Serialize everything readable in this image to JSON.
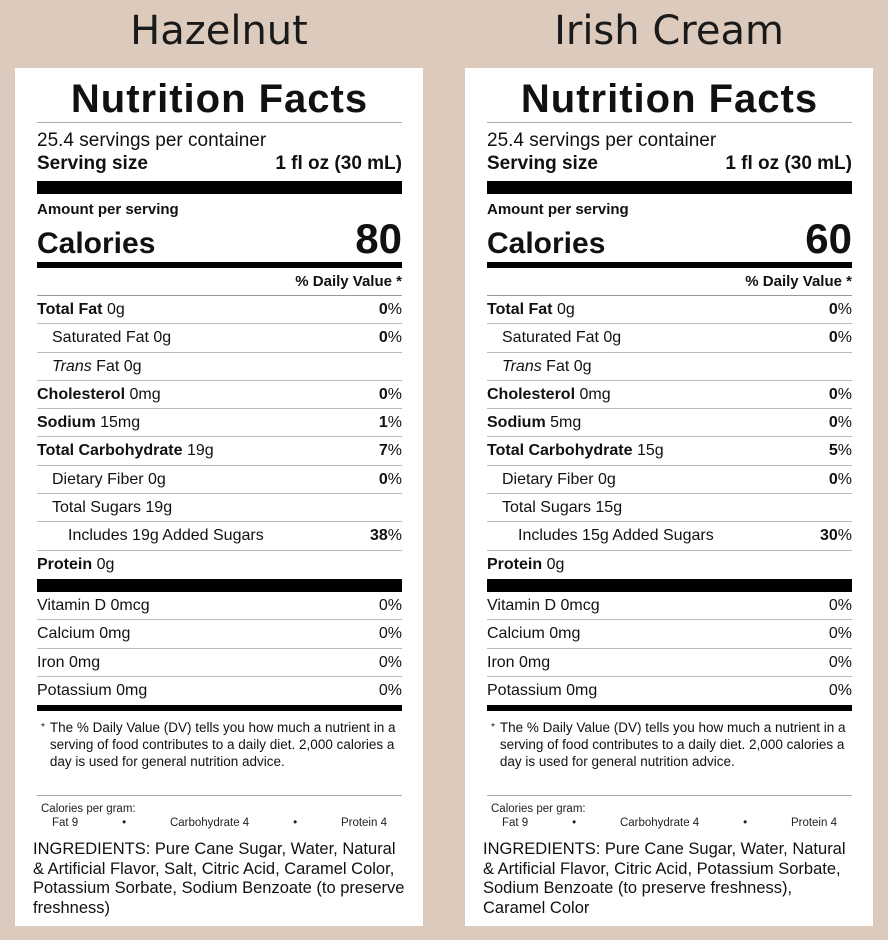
{
  "labels": [
    {
      "flavor": "Hazelnut",
      "title": "Nutrition Facts",
      "servings": "25.4 servings per container",
      "serving_size_label": "Serving size",
      "serving_size_value": "1 fl oz (30 mL)",
      "amount_per_serving": "Amount per serving",
      "calories_label": "Calories",
      "calories_value": "80",
      "dv_header": "% Daily Value *",
      "nutrients": [
        {
          "name": "Total Fat",
          "amount": "0g",
          "pct": "0",
          "indent": 0,
          "bold": true
        },
        {
          "name": "Saturated Fat",
          "amount": "0g",
          "pct": "0",
          "indent": 1,
          "bold": false
        },
        {
          "name": "Trans",
          "name_rest": "Fat",
          "amount": "0g",
          "pct": "",
          "indent": 1,
          "bold": false,
          "italic": true
        },
        {
          "name": "Cholesterol",
          "amount": "0mg",
          "pct": "0",
          "indent": 0,
          "bold": true
        },
        {
          "name": "Sodium",
          "amount": "15mg",
          "pct": "1",
          "indent": 0,
          "bold": true
        },
        {
          "name": "Total Carbohydrate",
          "amount": "19g",
          "pct": "7",
          "indent": 0,
          "bold": true
        },
        {
          "name": "Dietary Fiber",
          "amount": "0g",
          "pct": "0",
          "indent": 1,
          "bold": false
        },
        {
          "name": "Total Sugars",
          "amount": "19g",
          "pct": "",
          "indent": 1,
          "bold": false
        },
        {
          "name": "Includes 19g Added Sugars",
          "amount": "",
          "pct": "38",
          "indent": 2,
          "bold": false
        },
        {
          "name": "Protein",
          "amount": "0g",
          "pct": "",
          "indent": 0,
          "bold": true
        }
      ],
      "vitamins": [
        {
          "name": "Vitamin D 0mcg",
          "pct": "0%"
        },
        {
          "name": "Calcium 0mg",
          "pct": "0%"
        },
        {
          "name": "Iron 0mg",
          "pct": "0%"
        },
        {
          "name": "Potassium 0mg",
          "pct": "0%"
        }
      ],
      "footnote": "The % Daily Value (DV) tells you how much a nutrient in a serving of food contributes to a daily diet. 2,000 calories a day is used for general nutrition advice.",
      "cal_per_gram_label": "Calories per gram:",
      "cal_per_gram": [
        "Fat 9",
        "•",
        "Carbohydrate 4",
        "•",
        "Protein 4"
      ],
      "ingredients": "INGREDIENTS: Pure Cane Sugar, Water, Natural & Artificial Flavor, Salt, Citric Acid, Caramel Color, Potassium Sorbate, Sodium Benzoate (to preserve freshness)"
    },
    {
      "flavor": "Irish Cream",
      "title": "Nutrition Facts",
      "servings": "25.4 servings per container",
      "serving_size_label": "Serving size",
      "serving_size_value": "1 fl oz (30 mL)",
      "amount_per_serving": "Amount per serving",
      "calories_label": "Calories",
      "calories_value": "60",
      "dv_header": "% Daily Value *",
      "nutrients": [
        {
          "name": "Total Fat",
          "amount": "0g",
          "pct": "0",
          "indent": 0,
          "bold": true
        },
        {
          "name": "Saturated Fat",
          "amount": "0g",
          "pct": "0",
          "indent": 1,
          "bold": false
        },
        {
          "name": "Trans",
          "name_rest": "Fat",
          "amount": "0g",
          "pct": "",
          "indent": 1,
          "bold": false,
          "italic": true
        },
        {
          "name": "Cholesterol",
          "amount": "0mg",
          "pct": "0",
          "indent": 0,
          "bold": true
        },
        {
          "name": "Sodium",
          "amount": "5mg",
          "pct": "0",
          "indent": 0,
          "bold": true
        },
        {
          "name": "Total Carbohydrate",
          "amount": "15g",
          "pct": "5",
          "indent": 0,
          "bold": true
        },
        {
          "name": "Dietary Fiber",
          "amount": "0g",
          "pct": "0",
          "indent": 1,
          "bold": false
        },
        {
          "name": "Total Sugars",
          "amount": "15g",
          "pct": "",
          "indent": 1,
          "bold": false
        },
        {
          "name": "Includes 15g Added Sugars",
          "amount": "",
          "pct": "30",
          "indent": 2,
          "bold": false
        },
        {
          "name": "Protein",
          "amount": "0g",
          "pct": "",
          "indent": 0,
          "bold": true
        }
      ],
      "vitamins": [
        {
          "name": "Vitamin D 0mcg",
          "pct": "0%"
        },
        {
          "name": "Calcium 0mg",
          "pct": "0%"
        },
        {
          "name": "Iron 0mg",
          "pct": "0%"
        },
        {
          "name": "Potassium 0mg",
          "pct": "0%"
        }
      ],
      "footnote": "The % Daily Value (DV) tells you how much a nutrient in a serving of food contributes to a daily diet. 2,000 calories a day is used for general nutrition advice.",
      "cal_per_gram_label": "Calories per gram:",
      "cal_per_gram": [
        "Fat 9",
        "•",
        "Carbohydrate 4",
        "•",
        "Protein 4"
      ],
      "ingredients": "INGREDIENTS: Pure Cane Sugar, Water, Natural & Artificial Flavor, Citric Acid, Potassium Sorbate, Sodium Benzoate (to preserve freshness), Caramel Color"
    }
  ]
}
